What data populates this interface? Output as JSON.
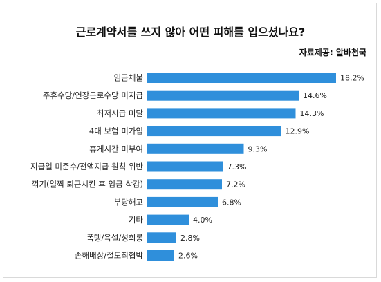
{
  "chart_data": {
    "type": "bar",
    "orientation": "horizontal",
    "title": "근로계약서를 쓰지 않아 어떤 피해를 입으셨나요?",
    "source": "자료제공: 알바천국",
    "categories": [
      "임금체불",
      "주휴수당/연장근로수당 미지급",
      "최저시급 미달",
      "4대 보험 미가입",
      "휴게시간 미부여",
      "지급일 미준수/전액지급 원칙 위반",
      "꺾기(일찍 퇴근시킨 후 임금 삭감)",
      "부당해고",
      "기타",
      "폭행/욕설/성희롱",
      "손해배상/절도죄협박"
    ],
    "values": [
      18.2,
      14.6,
      14.3,
      12.9,
      9.3,
      7.3,
      7.2,
      6.8,
      4.0,
      2.8,
      2.6
    ],
    "value_labels": [
      "18.2%",
      "14.6%",
      "14.3%",
      "12.9%",
      "9.3%",
      "7.3%",
      "7.2%",
      "6.8%",
      "4.0%",
      "2.8%",
      "2.6%"
    ],
    "xlim": [
      0,
      18.2
    ],
    "grid": false,
    "legend": "none",
    "bar_color": "#2f8fdb"
  }
}
